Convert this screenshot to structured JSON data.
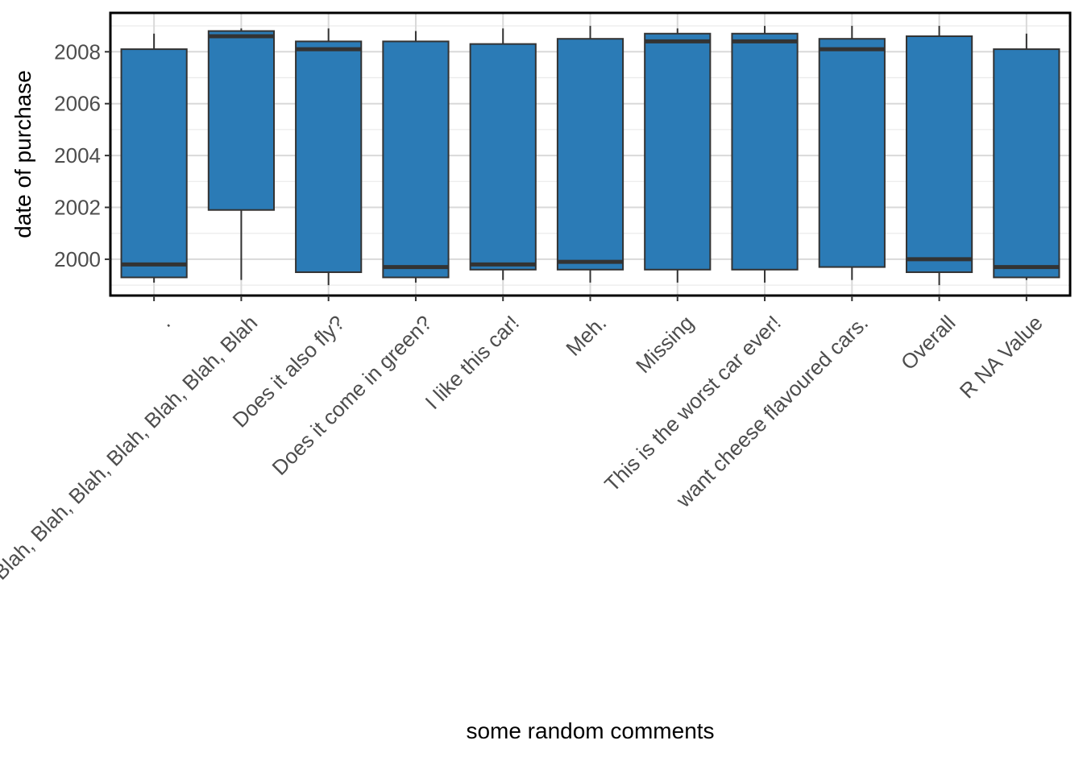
{
  "chart_data": {
    "type": "box",
    "xlabel": "some random comments",
    "ylabel": "date of purchase",
    "ylim": [
      1998.6,
      2009.5
    ],
    "y_ticks": [
      2000,
      2002,
      2004,
      2006,
      2008
    ],
    "y_tick_labels": [
      "2000",
      "2002",
      "2004",
      "2006",
      "2008"
    ],
    "grid": true,
    "fill_color": "#2b7bb6",
    "outline_color": "#333333",
    "categories": [
      ".",
      "Blah, Blah, Blah, Blah, Blah, Blah, Blah",
      "Does it also fly?",
      "Does it come in green?",
      "I like this car!",
      "Meh.",
      "Missing",
      "This is the worst car ever!",
      "want cheese flavoured cars.",
      "Overall",
      "R NA Value"
    ],
    "boxes": [
      {
        "whisker_low": 1999.1,
        "q1": 1999.3,
        "median": 1999.8,
        "q3": 2008.1,
        "whisker_high": 2008.7
      },
      {
        "whisker_low": 1999.2,
        "q1": 2001.9,
        "median": 2008.6,
        "q3": 2008.8,
        "whisker_high": 2008.9
      },
      {
        "whisker_low": 1999.0,
        "q1": 1999.5,
        "median": 2008.1,
        "q3": 2008.4,
        "whisker_high": 2008.9
      },
      {
        "whisker_low": 1999.1,
        "q1": 1999.3,
        "median": 1999.7,
        "q3": 2008.4,
        "whisker_high": 2008.8
      },
      {
        "whisker_low": 1999.2,
        "q1": 1999.6,
        "median": 1999.8,
        "q3": 2008.3,
        "whisker_high": 2008.9
      },
      {
        "whisker_low": 1999.1,
        "q1": 1999.6,
        "median": 1999.9,
        "q3": 2008.5,
        "whisker_high": 2009.0
      },
      {
        "whisker_low": 1999.1,
        "q1": 1999.6,
        "median": 2008.4,
        "q3": 2008.7,
        "whisker_high": 2008.9
      },
      {
        "whisker_low": 1999.1,
        "q1": 1999.6,
        "median": 2008.4,
        "q3": 2008.7,
        "whisker_high": 2009.0
      },
      {
        "whisker_low": 1999.2,
        "q1": 1999.7,
        "median": 2008.1,
        "q3": 2008.5,
        "whisker_high": 2009.0
      },
      {
        "whisker_low": 1999.0,
        "q1": 1999.5,
        "median": 2000.0,
        "q3": 2008.6,
        "whisker_high": 2009.0
      },
      {
        "whisker_low": 1999.2,
        "q1": 1999.3,
        "median": 1999.7,
        "q3": 2008.1,
        "whisker_high": 2008.7
      }
    ]
  }
}
